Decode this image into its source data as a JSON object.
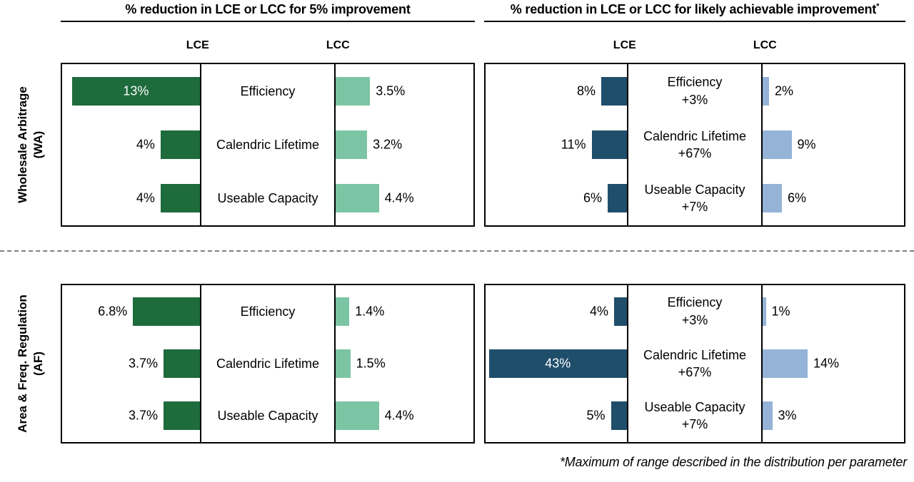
{
  "titles": {
    "left": "% reduction in LCE or LCC for 5% improvement",
    "right": "% reduction in LCE or LCC for likely achievable improvement",
    "right_superscript": "*"
  },
  "row_groups": [
    {
      "label": "Wholesale Arbitrage",
      "abbr": "(WA)"
    },
    {
      "label": "Area & Freq. Regulation",
      "abbr": "(AF)"
    }
  ],
  "footnote": "*Maximum of range described in the distribution per parameter",
  "colors": {
    "lce_green": "#1e6b3c",
    "lcc_green": "#7cc5a4",
    "lce_blue": "#1f4e6b",
    "lcc_blue": "#95b3d7",
    "divider_gray": "#7f7f7f"
  },
  "chart_data": [
    {
      "id": "wa_5pct",
      "type": "bar",
      "layout": "diverging-tornado",
      "row_group": "Wholesale Arbitrage (WA)",
      "title": "% reduction in LCE or LCC for 5% improvement",
      "axis_labels": {
        "left": "LCE",
        "right": "LCC"
      },
      "axis_max": 14,
      "categories": [
        "Efficiency",
        "Calendric Lifetime",
        "Useable Capacity"
      ],
      "series": [
        {
          "name": "LCE",
          "values": [
            13,
            4,
            4
          ],
          "labels": [
            "13%",
            "4%",
            "4%"
          ]
        },
        {
          "name": "LCC",
          "values": [
            3.5,
            3.2,
            4.4
          ],
          "labels": [
            "3.5%",
            "3.2%",
            "4.4%"
          ]
        }
      ]
    },
    {
      "id": "wa_achievable",
      "type": "bar",
      "layout": "diverging-tornado",
      "row_group": "Wholesale Arbitrage (WA)",
      "title": "% reduction in LCE or LCC for likely achievable improvement*",
      "axis_labels": {
        "left": "LCE",
        "right": "LCC"
      },
      "axis_max": 44,
      "categories": [
        "Efficiency",
        "Calendric Lifetime",
        "Useable Capacity"
      ],
      "category_sublabels": [
        "+3%",
        "+67%",
        "+7%"
      ],
      "series": [
        {
          "name": "LCE",
          "values": [
            8,
            11,
            6
          ],
          "labels": [
            "8%",
            "11%",
            "6%"
          ]
        },
        {
          "name": "LCC",
          "values": [
            2,
            9,
            6
          ],
          "labels": [
            "2%",
            "9%",
            "6%"
          ]
        }
      ]
    },
    {
      "id": "af_5pct",
      "type": "bar",
      "layout": "diverging-tornado",
      "row_group": "Area & Freq. Regulation (AF)",
      "title": "% reduction in LCE or LCC for 5% improvement",
      "axis_labels": {
        "left": "LCE",
        "right": "LCC"
      },
      "axis_max": 14,
      "categories": [
        "Efficiency",
        "Calendric Lifetime",
        "Useable Capacity"
      ],
      "series": [
        {
          "name": "LCE",
          "values": [
            6.8,
            3.7,
            3.7
          ],
          "labels": [
            "6.8%",
            "3.7%",
            "3.7%"
          ]
        },
        {
          "name": "LCC",
          "values": [
            1.4,
            1.5,
            4.4
          ],
          "labels": [
            "1.4%",
            "1.5%",
            "4.4%"
          ]
        }
      ]
    },
    {
      "id": "af_achievable",
      "type": "bar",
      "layout": "diverging-tornado",
      "row_group": "Area & Freq. Regulation (AF)",
      "title": "% reduction in LCE or LCC for likely achievable improvement*",
      "axis_labels": {
        "left": "LCE",
        "right": "LCC"
      },
      "axis_max": 44,
      "categories": [
        "Efficiency",
        "Calendric Lifetime",
        "Useable Capacity"
      ],
      "category_sublabels": [
        "+3%",
        "+67%",
        "+7%"
      ],
      "series": [
        {
          "name": "LCE",
          "values": [
            4,
            43,
            5
          ],
          "labels": [
            "4%",
            "43%",
            "5%"
          ]
        },
        {
          "name": "LCC",
          "values": [
            1,
            14,
            3
          ],
          "labels": [
            "1%",
            "14%",
            "3%"
          ]
        }
      ]
    }
  ]
}
